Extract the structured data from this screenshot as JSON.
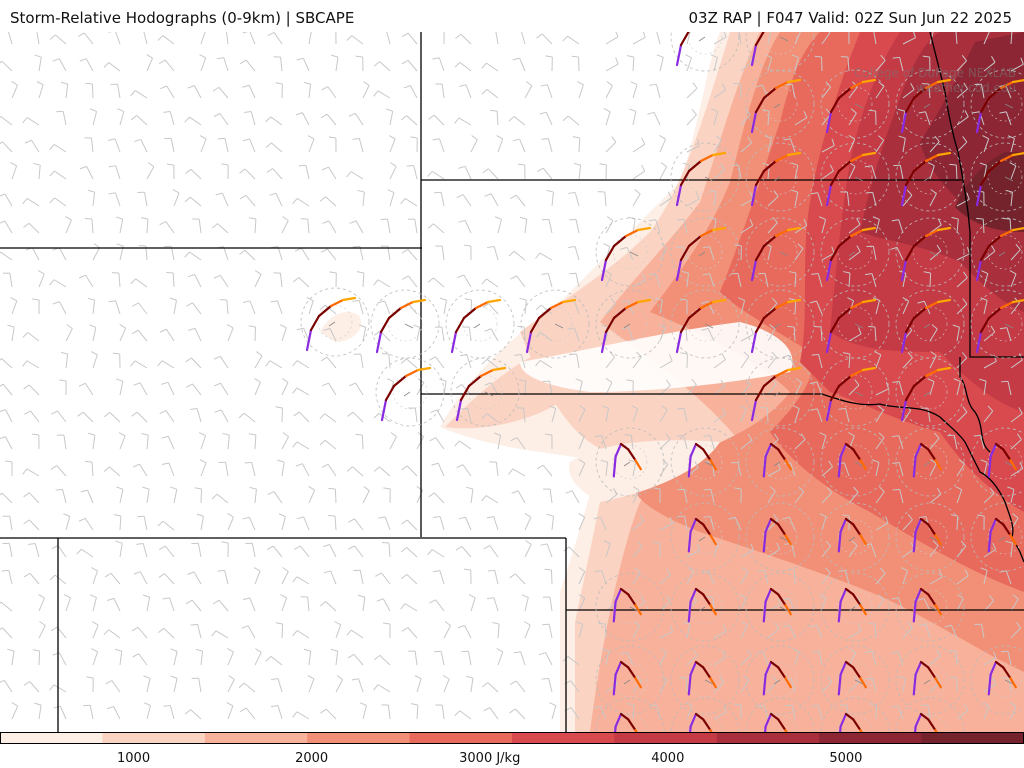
{
  "header": {
    "title": "Storm-Relative Hodographs (0-9km) | SBCAPE",
    "run_info": "03Z RAP | F047 Valid: 02Z Sun Jun 22 2025"
  },
  "watermark": {
    "lines": [
      "College of DuPage NEXLAB",
      "weather.cod.edu"
    ]
  },
  "colorbar": {
    "labels": [
      "1000",
      "2000",
      "3000 J/kg",
      "4000",
      "5000"
    ],
    "label_values": [
      1000,
      2000,
      3000,
      4000,
      5000
    ],
    "range": [
      250,
      6000
    ],
    "colors": [
      "#fdeee6",
      "#fbd3c2",
      "#f8b29b",
      "#f19077",
      "#e76a5d",
      "#d84a4d",
      "#c43a45",
      "#a92f3d",
      "#8c2634",
      "#74222c"
    ]
  },
  "colors": {
    "hodo_low": "#7a0000",
    "hodo_mid": "#ff6a00",
    "hodo_high": "#ffa500",
    "hodo_top": "#8a2be2",
    "barb": "#c8c8c8",
    "border": "#000000"
  }
}
